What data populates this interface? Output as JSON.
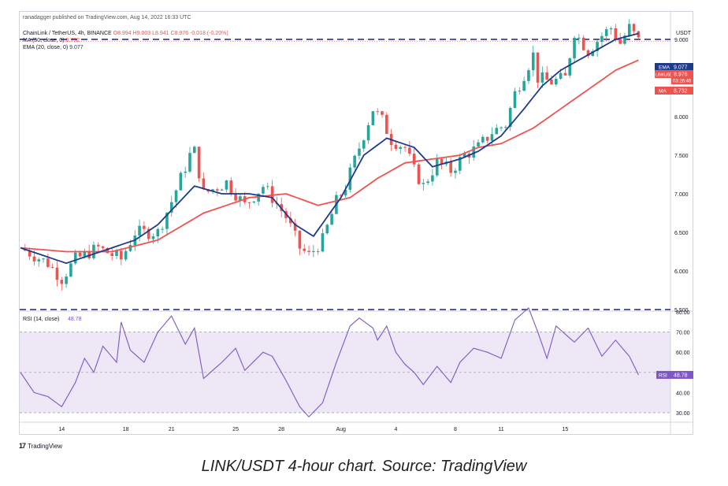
{
  "header": {
    "publisher": "ranadagger published on TradingView.com, Aug 14, 2022 16:33 UTC",
    "symbol_line": "ChainLink / TetherUS, 4h, BINANCE",
    "ohlc": {
      "o": "O8.994",
      "h": "H9.003",
      "l": "L8.941",
      "c": "C8.976",
      "chg": "-0.018 (-0.20%)"
    },
    "ma_line": {
      "label": "MA (50, close, 0)",
      "value": "8.732"
    },
    "ema_line": {
      "label": "EMA (20, close, 0)",
      "value": "9.077"
    }
  },
  "colors": {
    "up": "#26a69a",
    "down": "#ef5350",
    "ema": "#1e3a8a",
    "ma": "#ef5350",
    "rsi": "#7e57c2",
    "rsi_band": "#ede7f6",
    "level_line": "#1a237e"
  },
  "price_axis": {
    "currency": "USDT",
    "ticks": [
      "9.000",
      "8.500",
      "8.000",
      "7.500",
      "7.000",
      "6.500",
      "6.000",
      "5.500"
    ],
    "badges": [
      {
        "tag": "EMA",
        "value": "9.077",
        "color": "#1e3a8a"
      },
      {
        "tag": "LINKUSDT",
        "value": "8.976",
        "extra": "03:26:46",
        "color": "#ef5350"
      },
      {
        "tag": "MA",
        "value": "8.732",
        "color": "#ef5350"
      }
    ]
  },
  "rsi_panel": {
    "label": "RSI (14, close)",
    "value": "48.78",
    "ticks": [
      "80.00",
      "70.00",
      "60.00",
      "50.00",
      "40.00",
      "30.00"
    ],
    "badge_tag": "RSI",
    "badge_value": "48.78"
  },
  "time_axis": {
    "ticks": [
      "14",
      "18",
      "21",
      "25",
      "28",
      "Aug",
      "4",
      "8",
      "11",
      "15"
    ]
  },
  "footer": {
    "brand": "TradingView",
    "caption": "LINK/USDT 4-hour chart. Source: TradingView"
  },
  "chart_data": {
    "type": "candlestick",
    "title": "ChainLink / TetherUS, 4h, BINANCE",
    "y_range": [
      5.5,
      9.1
    ],
    "horizontal_levels": [
      9.0,
      5.5
    ],
    "x_labels": [
      "14",
      "18",
      "21",
      "25",
      "28",
      "Aug",
      "4",
      "8",
      "11",
      "15"
    ],
    "close_path": [
      [
        0,
        6.3
      ],
      [
        6,
        6.1
      ],
      [
        9,
        5.9
      ],
      [
        12,
        6.15
      ],
      [
        17,
        6.3
      ],
      [
        22,
        6.15
      ],
      [
        25,
        6.5
      ],
      [
        30,
        6.5
      ],
      [
        33,
        6.9
      ],
      [
        37,
        7.5
      ],
      [
        38,
        7.55
      ],
      [
        40,
        7.0
      ],
      [
        45,
        7.15
      ],
      [
        49,
        6.85
      ],
      [
        53,
        7.1
      ],
      [
        55,
        6.95
      ],
      [
        58,
        6.7
      ],
      [
        61,
        6.3
      ],
      [
        63,
        6.2
      ],
      [
        66,
        6.4
      ],
      [
        69,
        6.9
      ],
      [
        71,
        7.1
      ],
      [
        74,
        7.6
      ],
      [
        77,
        8.1
      ],
      [
        79,
        7.95
      ],
      [
        81,
        7.7
      ],
      [
        84,
        7.6
      ],
      [
        86,
        7.3
      ],
      [
        88,
        7.1
      ],
      [
        91,
        7.4
      ],
      [
        94,
        7.3
      ],
      [
        97,
        7.5
      ],
      [
        100,
        7.6
      ],
      [
        103,
        7.8
      ],
      [
        106,
        7.9
      ],
      [
        108,
        8.3
      ],
      [
        112,
        8.8
      ],
      [
        113,
        8.5
      ],
      [
        116,
        8.45
      ],
      [
        119,
        8.5
      ],
      [
        121,
        9.1
      ],
      [
        124,
        8.85
      ],
      [
        127,
        9.05
      ],
      [
        129,
        9.15
      ],
      [
        131,
        8.95
      ],
      [
        133,
        9.15
      ],
      [
        135,
        8.98
      ]
    ],
    "ema20_path": [
      [
        0,
        6.3
      ],
      [
        10,
        6.1
      ],
      [
        20,
        6.3
      ],
      [
        25,
        6.4
      ],
      [
        30,
        6.6
      ],
      [
        38,
        7.1
      ],
      [
        44,
        7.0
      ],
      [
        50,
        7.0
      ],
      [
        55,
        6.95
      ],
      [
        60,
        6.6
      ],
      [
        64,
        6.45
      ],
      [
        70,
        6.95
      ],
      [
        75,
        7.5
      ],
      [
        80,
        7.72
      ],
      [
        86,
        7.6
      ],
      [
        90,
        7.35
      ],
      [
        96,
        7.45
      ],
      [
        100,
        7.55
      ],
      [
        105,
        7.75
      ],
      [
        110,
        8.1
      ],
      [
        114,
        8.4
      ],
      [
        118,
        8.6
      ],
      [
        124,
        8.8
      ],
      [
        130,
        9.0
      ],
      [
        135,
        9.077
      ]
    ],
    "ma50_path": [
      [
        0,
        6.3
      ],
      [
        10,
        6.25
      ],
      [
        20,
        6.25
      ],
      [
        30,
        6.4
      ],
      [
        40,
        6.75
      ],
      [
        50,
        6.95
      ],
      [
        58,
        7.0
      ],
      [
        65,
        6.85
      ],
      [
        72,
        6.95
      ],
      [
        78,
        7.2
      ],
      [
        84,
        7.4
      ],
      [
        90,
        7.45
      ],
      [
        96,
        7.5
      ],
      [
        100,
        7.6
      ],
      [
        105,
        7.65
      ],
      [
        112,
        7.85
      ],
      [
        118,
        8.1
      ],
      [
        124,
        8.35
      ],
      [
        130,
        8.6
      ],
      [
        135,
        8.732
      ]
    ],
    "rsi_range": [
      30,
      80
    ],
    "rsi_bands": [
      30,
      50,
      70
    ],
    "rsi_path": [
      [
        0,
        50
      ],
      [
        3,
        40
      ],
      [
        6,
        38
      ],
      [
        9,
        33
      ],
      [
        12,
        45
      ],
      [
        14,
        57
      ],
      [
        16,
        50
      ],
      [
        18,
        63
      ],
      [
        21,
        55
      ],
      [
        22,
        75
      ],
      [
        24,
        61
      ],
      [
        27,
        55
      ],
      [
        30,
        70
      ],
      [
        33,
        78
      ],
      [
        36,
        64
      ],
      [
        38,
        72
      ],
      [
        40,
        47
      ],
      [
        44,
        55
      ],
      [
        47,
        62
      ],
      [
        49,
        51
      ],
      [
        53,
        60
      ],
      [
        55,
        58
      ],
      [
        58,
        46
      ],
      [
        61,
        33
      ],
      [
        63,
        28
      ],
      [
        66,
        35
      ],
      [
        69,
        55
      ],
      [
        72,
        73
      ],
      [
        74,
        77
      ],
      [
        77,
        72
      ],
      [
        78,
        66
      ],
      [
        80,
        73
      ],
      [
        82,
        60
      ],
      [
        84,
        54
      ],
      [
        86,
        50
      ],
      [
        88,
        44
      ],
      [
        91,
        53
      ],
      [
        94,
        45
      ],
      [
        96,
        55
      ],
      [
        99,
        62
      ],
      [
        102,
        60
      ],
      [
        105,
        57
      ],
      [
        108,
        76
      ],
      [
        111,
        82
      ],
      [
        113,
        70
      ],
      [
        115,
        57
      ],
      [
        117,
        73
      ],
      [
        121,
        65
      ],
      [
        124,
        72
      ],
      [
        127,
        58
      ],
      [
        130,
        66
      ],
      [
        133,
        58
      ],
      [
        135,
        48.78
      ]
    ]
  }
}
